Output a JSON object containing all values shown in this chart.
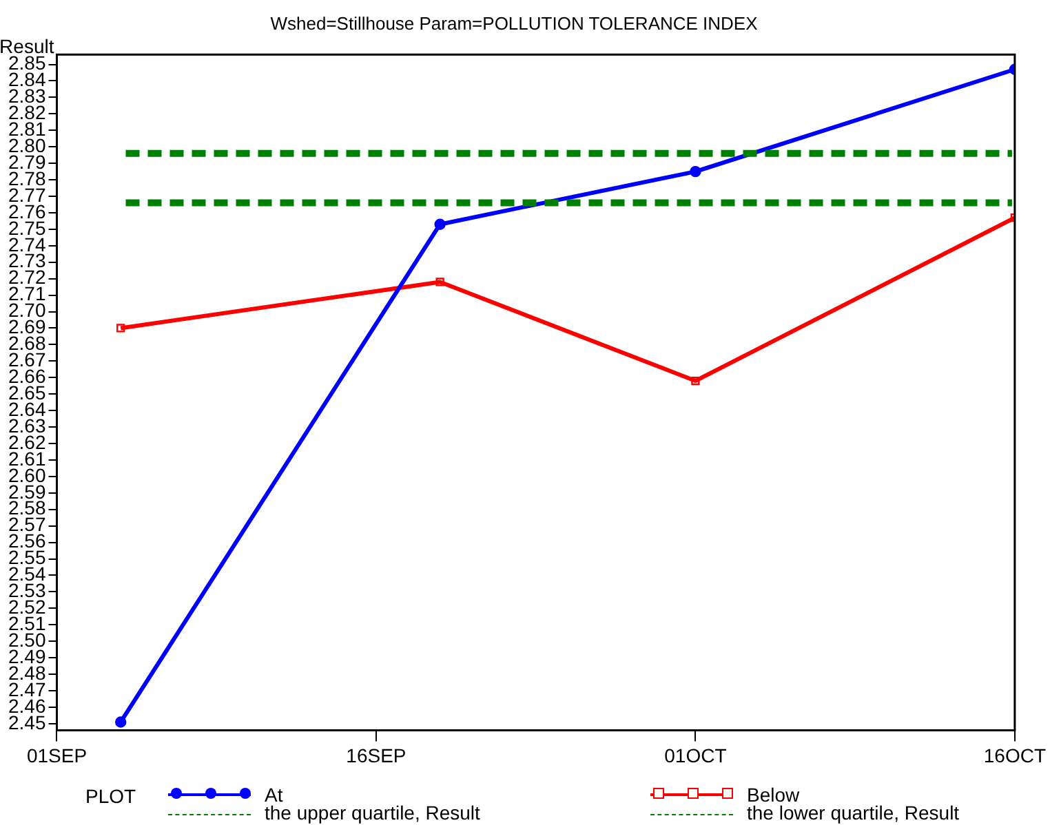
{
  "chart_data": {
    "type": "line",
    "title": "Wshed=Stillhouse Param=POLLUTION TOLERANCE INDEX",
    "ylabel": "Result",
    "legend_title": "PLOT",
    "legend": "bottom",
    "x": [
      "--09-04",
      "--09-19",
      "--10-01",
      "--10-16"
    ],
    "series": [
      {
        "name": "At",
        "color": "#0000ff",
        "marker": "circle",
        "values": [
          2.451,
          2.753,
          2.785,
          2.847
        ]
      },
      {
        "name": "Below",
        "color": "#ff0000",
        "marker": "square",
        "values": [
          2.69,
          2.718,
          2.658,
          2.757
        ]
      }
    ],
    "ref_lines": [
      {
        "axis": "y",
        "value": 2.796,
        "label": "the upper quartile, Result",
        "color": "#008000",
        "line_style": "dashed"
      },
      {
        "axis": "y",
        "value": 2.766,
        "label": "the lower quartile, Result",
        "color": "#008000",
        "line_style": "dashed"
      }
    ],
    "xlim": [
      "--09-01",
      "--10-16"
    ],
    "xticks": [
      {
        "value": "--09-01",
        "label": "01SEP"
      },
      {
        "value": "--09-16",
        "label": "16SEP"
      },
      {
        "value": "--10-01",
        "label": "01OCT"
      },
      {
        "value": "--10-16",
        "label": "16OCT"
      }
    ],
    "ylim": [
      2.446,
      2.856
    ],
    "yticks": [
      2.45,
      2.46,
      2.47,
      2.48,
      2.49,
      {
        "value": 2.5,
        "label": "2.50"
      },
      2.51,
      2.52,
      2.53,
      2.54,
      2.55,
      2.56,
      2.57,
      2.58,
      2.59,
      {
        "value": 2.6,
        "label": "2.60"
      },
      2.61,
      2.62,
      2.63,
      2.64,
      2.65,
      2.66,
      2.67,
      2.68,
      2.69,
      {
        "value": 2.7,
        "label": "2.70"
      },
      2.71,
      2.72,
      2.73,
      2.74,
      2.75,
      2.76,
      2.77,
      2.78,
      2.79,
      {
        "value": 2.8,
        "label": "2.80"
      },
      2.81,
      2.82,
      2.83,
      2.84,
      2.85
    ],
    "grid": false
  }
}
